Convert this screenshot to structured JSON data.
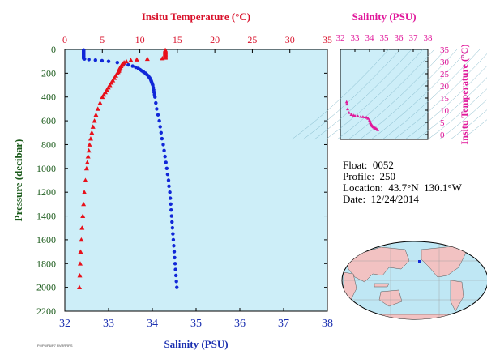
{
  "colors": {
    "plot_bg": "#cdeef8",
    "temperature": "#e8101a",
    "salinity": "#1027d8",
    "axis_temp": "#d8102a",
    "axis_sal": "#1a2fb0",
    "axis_pressure": "#1a5a1a",
    "ts": "#e0189a",
    "ocean": "#bfe7f4",
    "land": "#f2c2c2"
  },
  "info": {
    "float": "Float:  0052",
    "profile": "Profile:  250",
    "location": "Location:  43.7°N  130.1°W",
    "date": "Date:  12/24/2014"
  },
  "footer_code": "P4/P5/P6/P7 RVRRRPS",
  "chart_data": [
    {
      "type": "scatter",
      "title": "",
      "x_top_label": "Insitu Temperature (°C)",
      "x_bottom_label": "Salinity (PSU)",
      "ylabel": "Pressure (decibar)",
      "temperature_range": [
        0,
        35
      ],
      "salinity_range": [
        32,
        38
      ],
      "pressure_range": [
        0,
        2200
      ],
      "y_inverted": true,
      "temperature_ticks": [
        "0",
        "5",
        "10",
        "15",
        "20",
        "25",
        "30",
        "35"
      ],
      "salinity_ticks": [
        "32",
        "33",
        "34",
        "35",
        "36",
        "37",
        "38"
      ],
      "pressure_ticks": [
        "0",
        "200",
        "400",
        "600",
        "800",
        "1000",
        "1200",
        "1400",
        "1600",
        "1800",
        "2000",
        "2200"
      ],
      "series": [
        {
          "name": "Insitu Temperature",
          "marker": "triangle",
          "pressure": [
            5,
            10,
            15,
            20,
            25,
            30,
            35,
            40,
            45,
            50,
            55,
            60,
            65,
            70,
            75,
            80,
            85,
            90,
            100,
            110,
            120,
            130,
            140,
            150,
            160,
            170,
            180,
            190,
            200,
            220,
            240,
            260,
            280,
            300,
            320,
            340,
            360,
            380,
            400,
            450,
            500,
            550,
            600,
            650,
            700,
            750,
            800,
            850,
            900,
            950,
            1000,
            1100,
            1200,
            1300,
            1400,
            1500,
            1600,
            1700,
            1800,
            1900,
            2000
          ],
          "temperature": [
            13.4,
            13.4,
            13.4,
            13.4,
            13.4,
            13.4,
            13.4,
            13.4,
            13.4,
            13.4,
            13.4,
            13.4,
            13.4,
            13.4,
            13.0,
            11.0,
            9.6,
            8.8,
            8.2,
            7.9,
            7.7,
            7.6,
            7.5,
            7.4,
            7.3,
            7.25,
            7.2,
            7.1,
            7.0,
            6.8,
            6.6,
            6.4,
            6.2,
            6.0,
            5.8,
            5.6,
            5.4,
            5.2,
            5.0,
            4.7,
            4.4,
            4.15,
            3.95,
            3.75,
            3.6,
            3.45,
            3.3,
            3.2,
            3.1,
            3.0,
            2.9,
            2.75,
            2.6,
            2.5,
            2.4,
            2.3,
            2.2,
            2.1,
            2.05,
            2.0,
            1.95
          ]
        },
        {
          "name": "Salinity",
          "marker": "circle",
          "pressure": [
            5,
            10,
            15,
            20,
            25,
            30,
            35,
            40,
            45,
            50,
            55,
            60,
            65,
            70,
            75,
            80,
            85,
            90,
            95,
            100,
            110,
            120,
            130,
            140,
            150,
            160,
            170,
            180,
            190,
            200,
            210,
            220,
            230,
            240,
            250,
            260,
            270,
            280,
            290,
            300,
            320,
            340,
            360,
            380,
            400,
            450,
            500,
            550,
            600,
            650,
            700,
            750,
            800,
            850,
            900,
            950,
            1000,
            1050,
            1100,
            1150,
            1200,
            1250,
            1300,
            1350,
            1400,
            1450,
            1500,
            1550,
            1600,
            1650,
            1700,
            1750,
            1800,
            1850,
            1900,
            1950,
            2000
          ],
          "salinity": [
            32.43,
            32.43,
            32.43,
            32.43,
            32.43,
            32.43,
            32.43,
            32.43,
            32.43,
            32.43,
            32.43,
            32.43,
            32.43,
            32.43,
            32.43,
            32.45,
            32.55,
            32.7,
            32.85,
            33.0,
            33.2,
            33.35,
            33.45,
            33.55,
            33.62,
            33.68,
            33.72,
            33.76,
            33.8,
            33.84,
            33.87,
            33.9,
            33.92,
            33.94,
            33.96,
            33.97,
            33.98,
            33.99,
            34.0,
            34.01,
            34.02,
            34.03,
            34.04,
            34.05,
            34.06,
            34.08,
            34.1,
            34.13,
            34.16,
            34.18,
            34.2,
            34.22,
            34.25,
            34.27,
            34.29,
            34.31,
            34.33,
            34.35,
            34.37,
            34.38,
            34.4,
            34.41,
            34.42,
            34.43,
            34.44,
            34.45,
            34.46,
            34.47,
            34.48,
            34.49,
            34.5,
            34.51,
            34.52,
            34.53,
            34.54,
            34.55,
            34.56
          ]
        }
      ]
    },
    {
      "type": "scatter",
      "title": "",
      "x_top_label": "Salinity (PSU)",
      "ylabel": "Insitu Temperature (°C)",
      "salinity_range": [
        32,
        38
      ],
      "temperature_range": [
        -2,
        35
      ],
      "salinity_ticks": [
        "32",
        "33",
        "34",
        "35",
        "36",
        "37",
        "38"
      ],
      "temperature_ticks": [
        "0",
        "5",
        "10",
        "15",
        "20",
        "25",
        "30",
        "35"
      ],
      "series": [
        {
          "name": "T-S",
          "salinity": [
            32.43,
            32.45,
            32.5,
            32.6,
            32.75,
            32.9,
            33.0,
            33.2,
            33.4,
            33.55,
            33.7,
            33.8,
            33.9,
            34.0,
            34.02,
            34.05,
            34.08,
            34.12,
            34.16,
            34.2,
            34.25,
            34.3,
            34.35,
            34.4,
            34.45,
            34.5,
            34.56
          ],
          "temperature": [
            13.4,
            12.5,
            10.5,
            9.0,
            8.2,
            7.9,
            7.7,
            7.6,
            7.4,
            7.3,
            7.2,
            7.0,
            6.6,
            6.0,
            5.6,
            5.0,
            4.6,
            4.2,
            3.8,
            3.5,
            3.2,
            3.0,
            2.8,
            2.6,
            2.4,
            2.2,
            1.95
          ]
        }
      ]
    }
  ]
}
